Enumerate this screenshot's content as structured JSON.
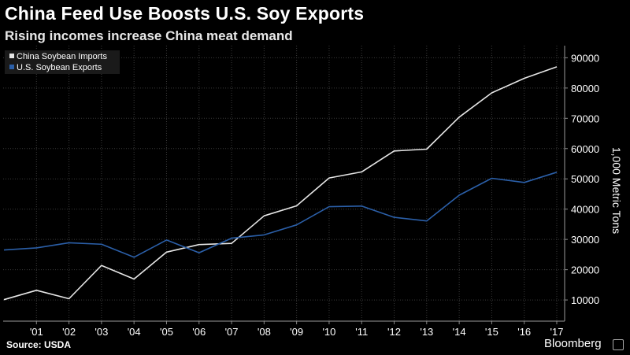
{
  "header": {
    "title": "China Feed Use Boosts U.S. Soy Exports",
    "subtitle": "Rising incomes increase China meat demand"
  },
  "footer": {
    "source": "Source: USDA",
    "brand": "Bloomberg"
  },
  "colors": {
    "background": "#000000",
    "china_line": "#e6e6e6",
    "us_line": "#2b5fa8",
    "grid": "#3a3a3a"
  },
  "chart_data": {
    "type": "line",
    "title": "China Feed Use Boosts U.S. Soy Exports",
    "subtitle": "Rising incomes increase China meat demand",
    "xlabel": "",
    "ylabel": "1,000 Metric Tons",
    "x": [
      "2000",
      "2001",
      "2002",
      "2003",
      "2004",
      "2005",
      "2006",
      "2007",
      "2008",
      "2009",
      "2010",
      "2011",
      "2012",
      "2013",
      "2014",
      "2015",
      "2016",
      "2017"
    ],
    "x_tick_labels": [
      "'01",
      "'02",
      "'03",
      "'04",
      "'05",
      "'06",
      "'07",
      "'08",
      "'09",
      "'10",
      "'11",
      "'12",
      "'13",
      "'14",
      "'15",
      "'16",
      "'17"
    ],
    "y_ticks": [
      10000,
      20000,
      30000,
      40000,
      50000,
      60000,
      70000,
      80000,
      90000
    ],
    "y_tick_labels": [
      "10000",
      "20000",
      "30000",
      "40000",
      "50000",
      "60000",
      "70000",
      "80000",
      "90000"
    ],
    "ylim": [
      3000,
      94000
    ],
    "y_axis_side": "right",
    "grid": true,
    "legend_position": "top-left",
    "series": [
      {
        "name": "China Soybean Imports",
        "color": "#e6e6e6",
        "values": [
          10100,
          13200,
          10400,
          21400,
          16900,
          25800,
          28300,
          28700,
          37800,
          41100,
          50300,
          52300,
          59200,
          59800,
          70400,
          78400,
          83200,
          87000
        ]
      },
      {
        "name": "U.S. Soybean Exports",
        "color": "#2b5fa8",
        "values": [
          26500,
          27200,
          28900,
          28400,
          24100,
          29800,
          25600,
          30400,
          31500,
          34800,
          40800,
          41000,
          37300,
          36100,
          44600,
          50200,
          48800,
          52200
        ]
      }
    ]
  }
}
